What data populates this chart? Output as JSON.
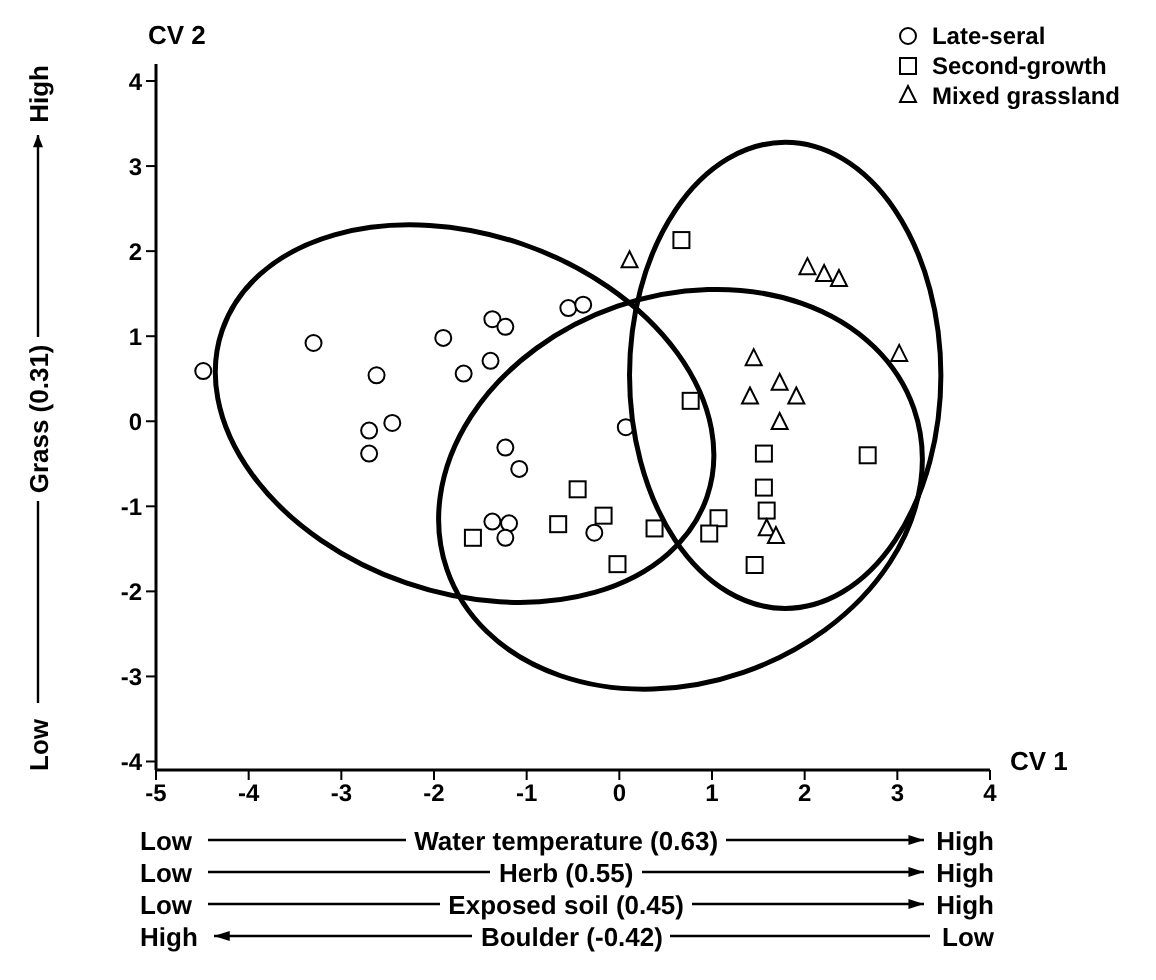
{
  "chart_data": {
    "type": "scatter",
    "xlabel": "CV 1",
    "ylabel": "CV 2",
    "xlim": [
      -5,
      4
    ],
    "ylim": [
      -4.1,
      4.2
    ],
    "xticks": [
      -5,
      -4,
      -3,
      -2,
      -1,
      0,
      1,
      2,
      3,
      4
    ],
    "yticks": [
      -4,
      -3,
      -2,
      -1,
      0,
      1,
      2,
      3,
      4
    ],
    "legend": "top right",
    "series": [
      {
        "name": "Late-seral",
        "color": "#000000",
        "marker": "circle",
        "x": [
          -4.49,
          -3.3,
          -2.62,
          -2.7,
          -2.45,
          -2.7,
          -1.9,
          -1.68,
          -1.39,
          -1.37,
          -1.23,
          -0.55,
          -0.39,
          -1.23,
          -1.08,
          -1.37,
          -1.19,
          -1.23,
          -0.27,
          0.07
        ],
        "values": [
          0.59,
          0.92,
          0.54,
          -0.11,
          -0.02,
          -0.38,
          0.98,
          0.56,
          0.71,
          1.2,
          1.11,
          1.33,
          1.37,
          -0.31,
          -0.56,
          -1.18,
          -1.2,
          -1.37,
          -1.31,
          -0.07
        ]
      },
      {
        "name": "Second-growth",
        "color": "#000000",
        "marker": "square",
        "x": [
          -1.58,
          -0.45,
          -0.66,
          -0.17,
          -0.02,
          0.67,
          0.77,
          0.38,
          1.07,
          0.97,
          1.56,
          1.56,
          1.59,
          1.46,
          2.68
        ],
        "values": [
          -1.37,
          -0.8,
          -1.21,
          -1.11,
          -1.68,
          2.13,
          0.24,
          -1.26,
          -1.14,
          -1.32,
          -0.38,
          -0.78,
          -1.05,
          -1.69,
          -0.4
        ]
      },
      {
        "name": "Mixed grassland",
        "color": "#000000",
        "marker": "triangle",
        "x": [
          0.11,
          2.03,
          2.21,
          2.37,
          3.02,
          1.45,
          1.73,
          1.41,
          1.91,
          1.73,
          1.59,
          1.69
        ],
        "values": [
          1.88,
          1.8,
          1.72,
          1.66,
          0.78,
          0.73,
          0.44,
          0.28,
          0.28,
          -0.02,
          -1.27,
          -1.36
        ]
      }
    ],
    "annotations": [
      "Low",
      "Grass (0.31)",
      "High",
      "Low",
      "Water temperature (0.63)",
      "High",
      "Low",
      "Herb (0.55)",
      "High",
      "Low",
      "Exposed soil (0.45)",
      "High",
      "High",
      "Boulder (-0.42)",
      "Low"
    ]
  }
}
